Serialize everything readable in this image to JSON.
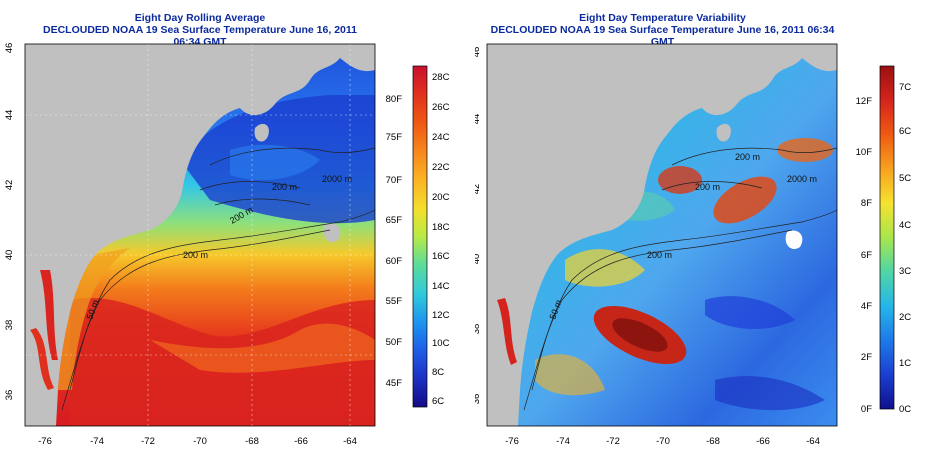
{
  "panels": [
    {
      "title": "Eight Day Rolling Average",
      "subtitle": "DECLOUDED NOAA 19 Sea Surface Temperature June 16, 2011 06:34 GMT",
      "kind": "sst",
      "x_ticks": [
        "-76",
        "-74",
        "-72",
        "-70",
        "-68",
        "-66",
        "-64"
      ],
      "y_ticks": [
        "36",
        "38",
        "40",
        "42",
        "44",
        "46"
      ],
      "contour_labels": [
        "50 m",
        "200 m",
        "200 m",
        "200 m",
        "2000 m"
      ],
      "colorbar": {
        "celsius": [
          "28C",
          "26C",
          "24C",
          "22C",
          "20C",
          "18C",
          "16C",
          "14C",
          "12C",
          "10C",
          "8C",
          "6C"
        ],
        "fahrenheit": [
          "80F",
          "75F",
          "70F",
          "65F",
          "60F",
          "55F",
          "50F",
          "45F"
        ],
        "colors": [
          "#c8102e",
          "#e0301e",
          "#ef5a12",
          "#f7861c",
          "#fbb125",
          "#f3df2d",
          "#b8ea46",
          "#5fdc97",
          "#2fc9dc",
          "#1e95ef",
          "#1f5fe8",
          "#1b2fc0",
          "#140a86"
        ]
      }
    },
    {
      "title": "Eight Day Temperature Variability",
      "subtitle": "DECLOUDED NOAA 19 Sea Surface Temperature June 16, 2011 06:34 GMT",
      "kind": "var",
      "x_ticks": [
        "-76",
        "-74",
        "-72",
        "-70",
        "-68",
        "-66",
        "-64"
      ],
      "y_ticks": [
        "36",
        "38",
        "40",
        "42",
        "44",
        "46"
      ],
      "contour_labels": [
        "50 m",
        "200 m",
        "200 m",
        "200 m",
        "2000 m"
      ],
      "colorbar": {
        "celsius": [
          "7C",
          "6C",
          "5C",
          "4C",
          "3C",
          "2C",
          "1C",
          "0C"
        ],
        "fahrenheit": [
          "12F",
          "10F",
          "8F",
          "6F",
          "4F",
          "2F",
          "0F"
        ],
        "colors": [
          "#9b1010",
          "#d4241d",
          "#ef5a12",
          "#f7a21f",
          "#f6e22f",
          "#a8e64b",
          "#4fd6a6",
          "#26b6e8",
          "#1d7ae8",
          "#1b3fd0",
          "#10108c"
        ]
      }
    }
  ],
  "colors": {
    "land": "#c0c0c0",
    "title": "#0b2a9e",
    "contour": "#222222"
  }
}
